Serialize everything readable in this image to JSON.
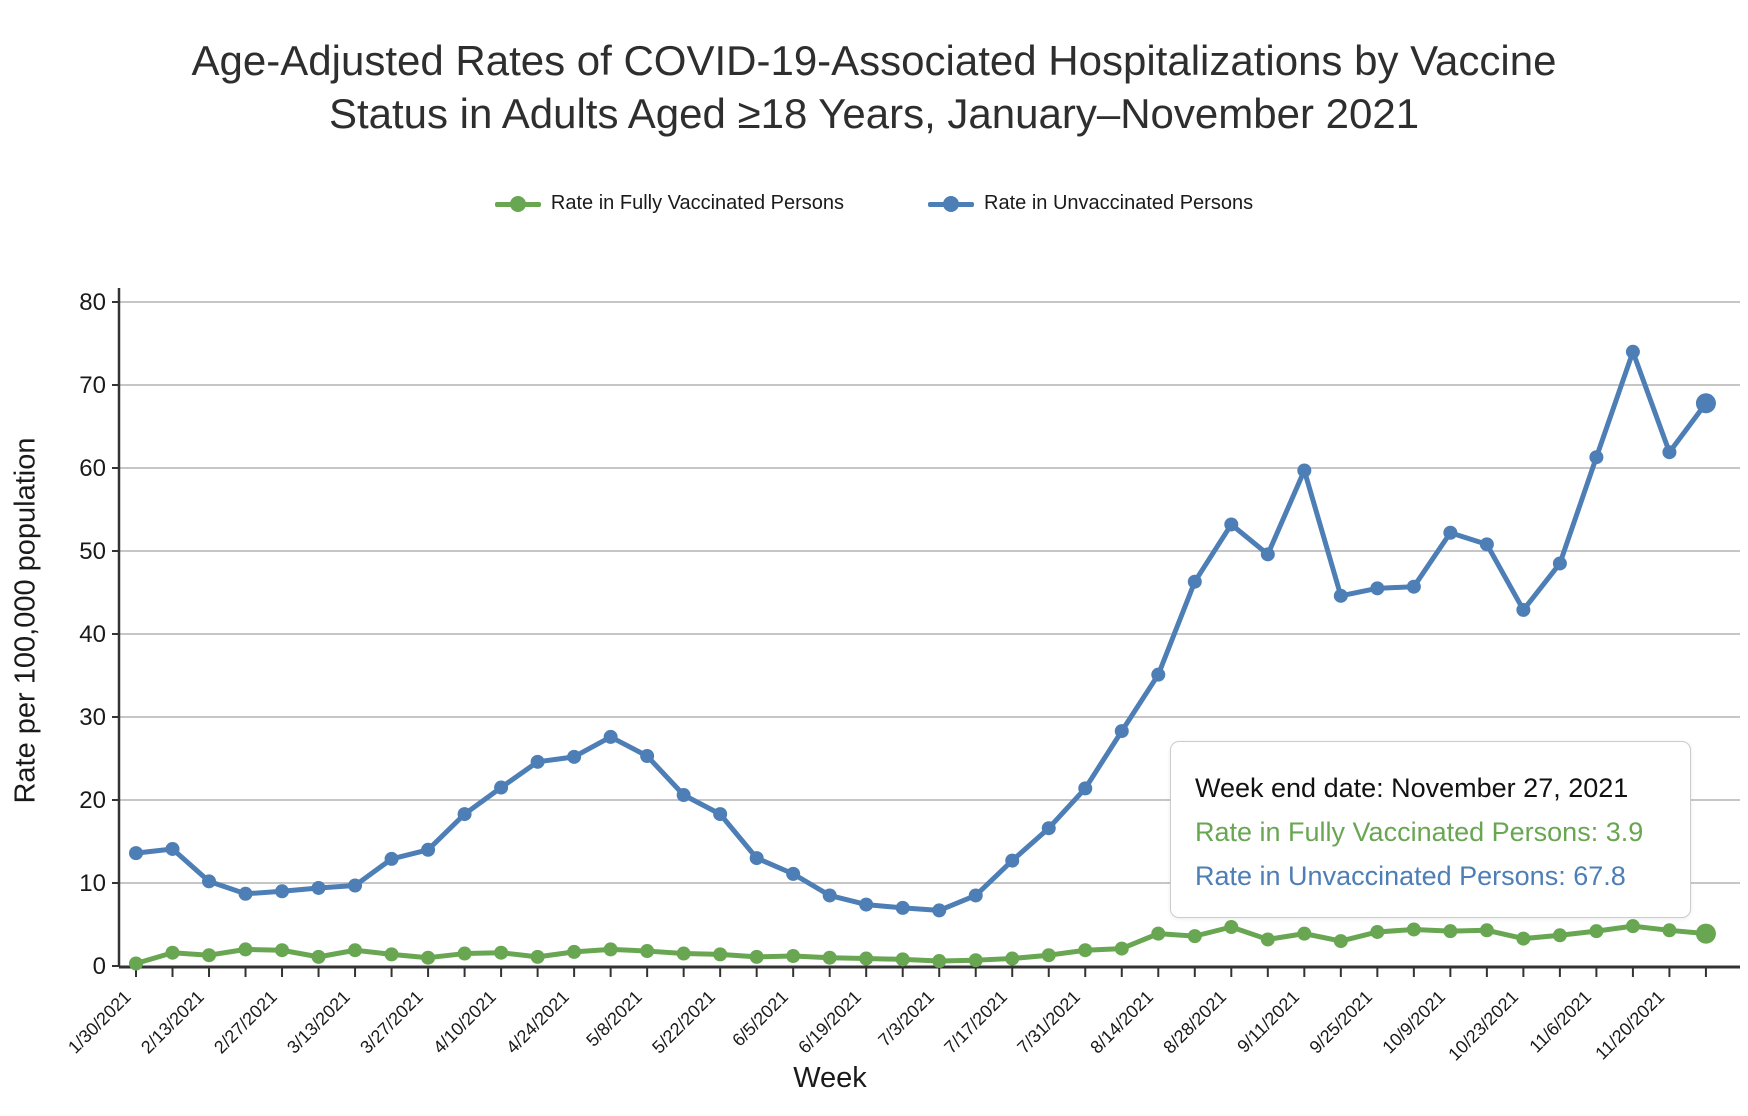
{
  "title": {
    "line1": "Age-Adjusted Rates of COVID-19-Associated Hospitalizations by Vaccine",
    "line2": "Status in Adults Aged ≥18 Years, January–November 2021"
  },
  "colors": {
    "vaccinated_green": "#68a652",
    "unvaccinated_blue": "#4d7eb5",
    "gridline_gray": "#b3b3b3",
    "axis_dark": "#333333",
    "text_dark": "#1a1a1a",
    "tooltip_border": "#cccccc"
  },
  "legend": {
    "items": [
      {
        "label": "Rate in Fully Vaccinated Persons",
        "color": "#68a652"
      },
      {
        "label": "Rate in Unvaccinated Persons",
        "color": "#4d7eb5"
      }
    ]
  },
  "tooltip": {
    "week_line": "Week end date: November 27, 2021",
    "vaccinated_line": "Rate in Fully Vaccinated Persons: 3.9",
    "unvaccinated_line": "Rate in Unvaccinated Persons: 67.8"
  },
  "chart_data": {
    "type": "line",
    "title": "Age-Adjusted Rates of COVID-19-Associated Hospitalizations by Vaccine Status in Adults Aged ≥18 Years, January–November 2021",
    "xlabel": "Week",
    "ylabel": "Rate per 100,000 population",
    "ylim": [
      0,
      80
    ],
    "yticks": [
      0,
      10,
      20,
      30,
      40,
      50,
      60,
      70,
      80
    ],
    "grid": "horizontal",
    "legend_position": "top",
    "x_tick_label_every": 2,
    "x": [
      "1/30/2021",
      "2/6/2021",
      "2/13/2021",
      "2/20/2021",
      "2/27/2021",
      "3/6/2021",
      "3/13/2021",
      "3/20/2021",
      "3/27/2021",
      "4/3/2021",
      "4/10/2021",
      "4/17/2021",
      "4/24/2021",
      "5/1/2021",
      "5/8/2021",
      "5/15/2021",
      "5/22/2021",
      "5/29/2021",
      "6/5/2021",
      "6/12/2021",
      "6/19/2021",
      "6/26/2021",
      "7/3/2021",
      "7/10/2021",
      "7/17/2021",
      "7/24/2021",
      "7/31/2021",
      "8/7/2021",
      "8/14/2021",
      "8/21/2021",
      "8/28/2021",
      "9/4/2021",
      "9/11/2021",
      "9/18/2021",
      "9/25/2021",
      "10/2/2021",
      "10/9/2021",
      "10/16/2021",
      "10/23/2021",
      "10/30/2021",
      "11/6/2021",
      "11/13/2021",
      "11/20/2021",
      "11/27/2021"
    ],
    "series": [
      {
        "name": "Rate in Fully Vaccinated Persons",
        "color": "#68a652",
        "values": [
          0.3,
          1.6,
          1.3,
          2.0,
          1.9,
          1.1,
          1.9,
          1.4,
          1.0,
          1.5,
          1.6,
          1.1,
          1.7,
          2.0,
          1.8,
          1.5,
          1.4,
          1.1,
          1.2,
          1.0,
          0.9,
          0.8,
          0.6,
          0.7,
          0.9,
          1.3,
          1.9,
          2.1,
          3.9,
          3.6,
          4.7,
          3.2,
          3.9,
          3.0,
          4.1,
          4.4,
          4.2,
          4.3,
          3.3,
          3.7,
          4.2,
          4.8,
          4.3,
          3.9
        ]
      },
      {
        "name": "Rate in Unvaccinated Persons",
        "color": "#4d7eb5",
        "values": [
          13.6,
          14.1,
          10.2,
          8.7,
          9.0,
          9.4,
          9.7,
          12.9,
          14.0,
          18.3,
          21.5,
          24.6,
          25.2,
          27.6,
          25.3,
          20.6,
          18.3,
          13.0,
          11.1,
          8.5,
          7.4,
          7.0,
          6.7,
          8.5,
          12.7,
          16.6,
          21.4,
          28.3,
          35.1,
          46.3,
          53.2,
          49.6,
          59.7,
          44.6,
          45.5,
          45.7,
          52.2,
          50.8,
          42.9,
          48.5,
          61.3,
          74.0,
          61.9,
          67.8
        ]
      }
    ],
    "highlighted_point": {
      "x": "11/27/2021",
      "vaccinated_value": 3.9,
      "unvaccinated_value": 67.8
    }
  }
}
